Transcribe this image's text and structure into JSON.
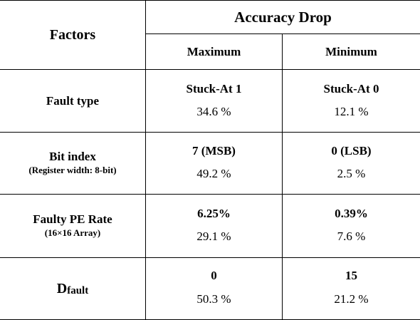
{
  "header": {
    "factors": "Factors",
    "accuracy_drop": "Accuracy Drop",
    "maximum": "Maximum",
    "minimum": "Minimum"
  },
  "rows": [
    {
      "name": "Fault type",
      "note": "",
      "max_setting": "Stuck-At 1",
      "max_value": "34.6 %",
      "min_setting": "Stuck-At 0",
      "min_value": "12.1 %"
    },
    {
      "name": "Bit index",
      "note": "(Register width: 8-bit)",
      "max_setting": "7 (MSB)",
      "max_value": "49.2 %",
      "min_setting": "0 (LSB)",
      "min_value": "2.5 %"
    },
    {
      "name": "Faulty PE Rate",
      "note": "(16×16 Array)",
      "max_setting": "6.25%",
      "max_value": "29.1 %",
      "min_setting": "0.39%",
      "min_value": "7.6 %"
    },
    {
      "name_main": "D",
      "name_sub": "fault",
      "max_setting": "0",
      "max_value": "50.3 %",
      "min_setting": "15",
      "min_value": "21.2 %"
    }
  ]
}
